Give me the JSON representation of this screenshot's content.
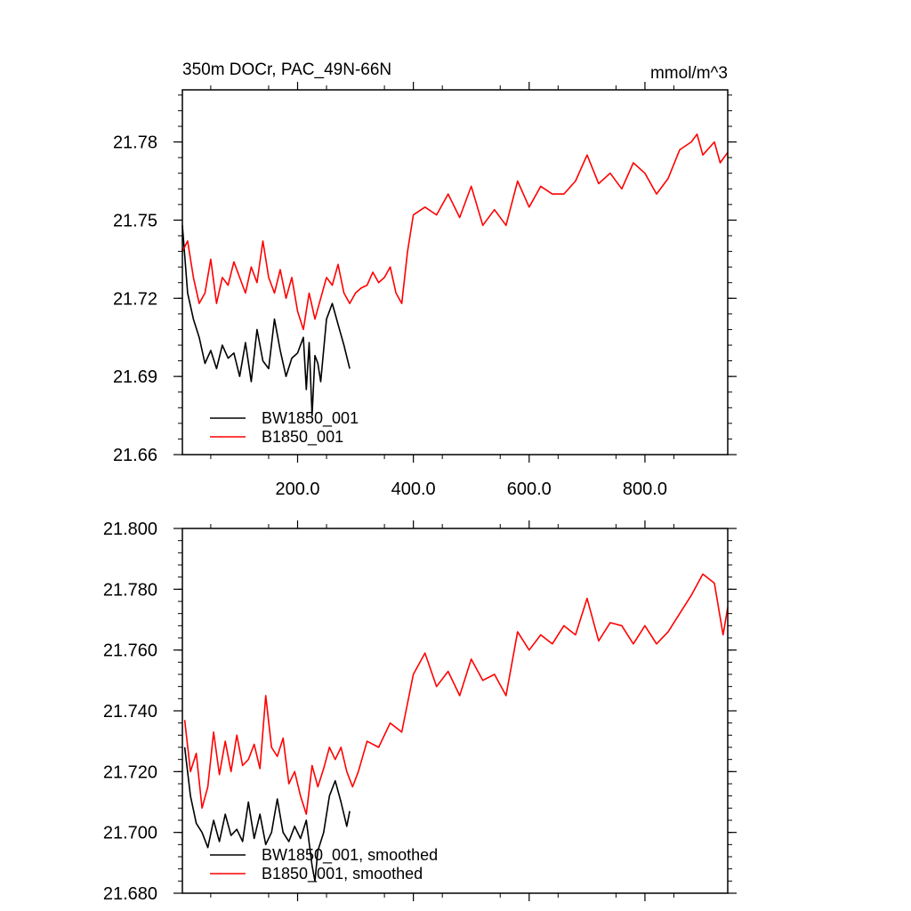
{
  "chart_data": [
    {
      "type": "line",
      "title": "350m DOCr, PAC_49N-66N",
      "units": "mmol/m^3",
      "xlim": [
        1,
        943
      ],
      "ylim": [
        21.66,
        21.8
      ],
      "x_ticks": [
        200,
        400,
        600,
        800
      ],
      "x_tick_labels": [
        "200.0",
        "400.0",
        "600.0",
        "800.0"
      ],
      "y_ticks": [
        21.66,
        21.69,
        21.72,
        21.75,
        21.78
      ],
      "y_tick_labels": [
        "21.66",
        "21.69",
        "21.72",
        "21.75",
        "21.78"
      ],
      "grid": false,
      "legend_position": "bottom-left",
      "series": [
        {
          "name": "BW1850_001",
          "color": "#000000",
          "x": [
            1,
            10,
            20,
            30,
            40,
            50,
            60,
            70,
            80,
            90,
            100,
            110,
            120,
            130,
            140,
            150,
            160,
            170,
            180,
            190,
            200,
            210,
            215,
            220,
            225,
            230,
            235,
            240,
            250,
            260,
            270,
            280,
            290
          ],
          "y": [
            21.748,
            21.722,
            21.712,
            21.705,
            21.695,
            21.7,
            21.693,
            21.702,
            21.697,
            21.699,
            21.69,
            21.703,
            21.688,
            21.708,
            21.696,
            21.693,
            21.712,
            21.7,
            21.69,
            21.697,
            21.699,
            21.705,
            21.685,
            21.703,
            21.675,
            21.698,
            21.695,
            21.688,
            21.712,
            21.718,
            21.71,
            21.702,
            21.693
          ]
        },
        {
          "name": "B1850_001",
          "color": "#ff0000",
          "x": [
            1,
            10,
            20,
            30,
            40,
            50,
            60,
            70,
            80,
            90,
            100,
            110,
            120,
            130,
            140,
            150,
            160,
            170,
            180,
            190,
            200,
            210,
            220,
            230,
            240,
            250,
            260,
            270,
            280,
            290,
            300,
            310,
            320,
            330,
            340,
            350,
            360,
            370,
            380,
            390,
            400,
            420,
            440,
            460,
            480,
            500,
            520,
            540,
            560,
            580,
            600,
            620,
            640,
            660,
            680,
            700,
            720,
            740,
            760,
            780,
            800,
            820,
            840,
            860,
            880,
            890,
            900,
            920,
            930,
            943
          ],
          "y": [
            21.738,
            21.742,
            21.728,
            21.718,
            21.722,
            21.735,
            21.718,
            21.728,
            21.725,
            21.734,
            21.728,
            21.722,
            21.732,
            21.726,
            21.742,
            21.728,
            21.722,
            21.731,
            21.72,
            21.728,
            21.715,
            21.708,
            21.722,
            21.712,
            21.72,
            21.728,
            21.725,
            21.733,
            21.722,
            21.718,
            21.722,
            21.724,
            21.725,
            21.73,
            21.726,
            21.728,
            21.732,
            21.722,
            21.718,
            21.738,
            21.752,
            21.755,
            21.752,
            21.76,
            21.751,
            21.763,
            21.748,
            21.754,
            21.748,
            21.765,
            21.755,
            21.763,
            21.76,
            21.76,
            21.765,
            21.775,
            21.764,
            21.768,
            21.762,
            21.772,
            21.768,
            21.76,
            21.766,
            21.777,
            21.78,
            21.783,
            21.775,
            21.78,
            21.772,
            21.776
          ]
        }
      ]
    },
    {
      "type": "line",
      "xlim": [
        1,
        943
      ],
      "ylim": [
        21.68,
        21.8
      ],
      "x_ticks": [
        200,
        400,
        600,
        800
      ],
      "y_ticks": [
        21.68,
        21.7,
        21.72,
        21.74,
        21.76,
        21.78,
        21.8
      ],
      "y_tick_labels": [
        "21.680",
        "21.700",
        "21.720",
        "21.740",
        "21.760",
        "21.780",
        "21.800"
      ],
      "grid": false,
      "legend_position": "bottom-left",
      "series": [
        {
          "name": "BW1850_001, smoothed",
          "color": "#000000",
          "x": [
            5,
            15,
            25,
            35,
            45,
            55,
            65,
            75,
            85,
            95,
            105,
            115,
            125,
            135,
            145,
            155,
            165,
            175,
            185,
            195,
            205,
            215,
            225,
            230,
            235,
            245,
            255,
            265,
            275,
            285,
            290
          ],
          "y": [
            21.728,
            21.712,
            21.703,
            21.7,
            21.695,
            21.704,
            21.697,
            21.706,
            21.699,
            21.701,
            21.697,
            21.71,
            21.698,
            21.706,
            21.696,
            21.7,
            21.711,
            21.7,
            21.697,
            21.702,
            21.698,
            21.704,
            21.689,
            21.684,
            21.694,
            21.7,
            21.712,
            21.717,
            21.71,
            21.702,
            21.707
          ]
        },
        {
          "name": "B1850_001, smoothed",
          "color": "#ff0000",
          "x": [
            5,
            15,
            25,
            35,
            45,
            55,
            65,
            75,
            85,
            95,
            105,
            115,
            125,
            135,
            145,
            155,
            165,
            175,
            185,
            195,
            205,
            215,
            225,
            235,
            245,
            255,
            265,
            275,
            285,
            295,
            305,
            320,
            340,
            360,
            380,
            400,
            420,
            440,
            460,
            480,
            500,
            520,
            540,
            560,
            580,
            600,
            620,
            640,
            660,
            680,
            700,
            720,
            740,
            760,
            780,
            800,
            820,
            840,
            860,
            880,
            900,
            920,
            935,
            943
          ],
          "y": [
            21.737,
            21.72,
            21.726,
            21.708,
            21.715,
            21.733,
            21.719,
            21.73,
            21.72,
            21.732,
            21.722,
            21.724,
            21.729,
            21.721,
            21.745,
            21.728,
            21.725,
            21.731,
            21.716,
            21.72,
            21.712,
            21.706,
            21.722,
            21.715,
            21.721,
            21.728,
            21.724,
            21.728,
            21.72,
            21.715,
            21.72,
            21.73,
            21.728,
            21.736,
            21.733,
            21.752,
            21.759,
            21.748,
            21.753,
            21.745,
            21.757,
            21.75,
            21.752,
            21.745,
            21.766,
            21.76,
            21.765,
            21.762,
            21.768,
            21.765,
            21.777,
            21.763,
            21.769,
            21.768,
            21.762,
            21.768,
            21.762,
            21.766,
            21.772,
            21.778,
            21.785,
            21.782,
            21.765,
            21.774
          ]
        }
      ]
    }
  ]
}
